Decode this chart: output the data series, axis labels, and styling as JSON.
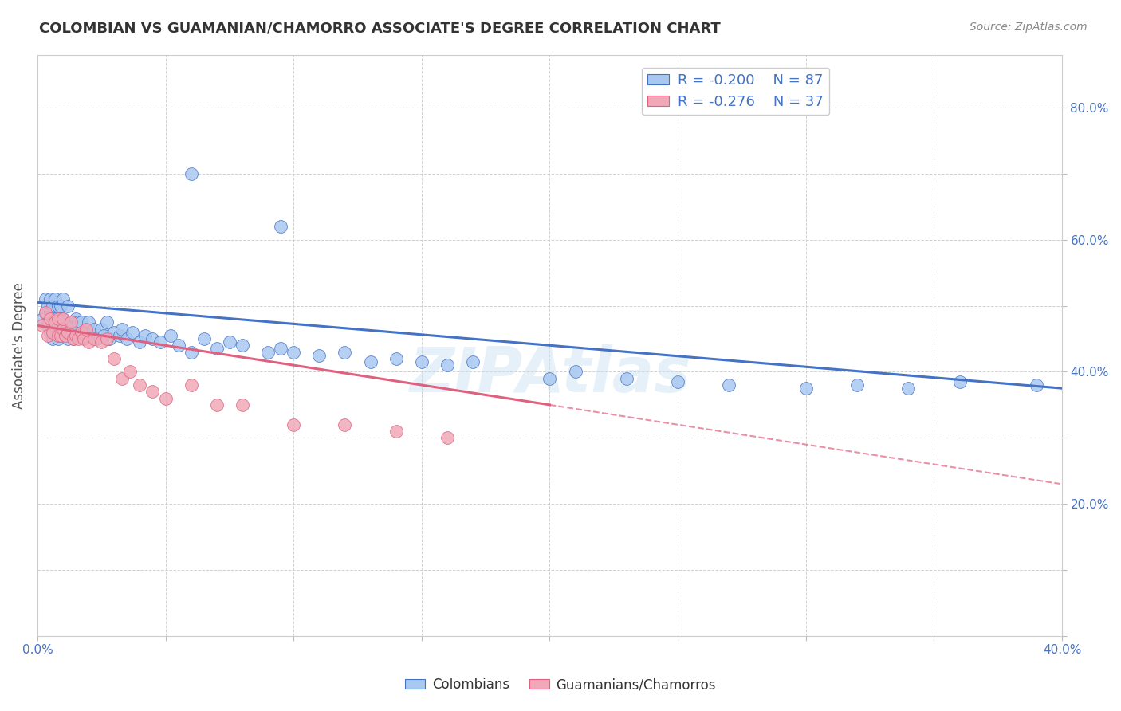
{
  "title": "COLOMBIAN VS GUAMANIAN/CHAMORRO ASSOCIATE'S DEGREE CORRELATION CHART",
  "source": "Source: ZipAtlas.com",
  "ylabel": "Associate's Degree",
  "xlim": [
    0.0,
    0.4
  ],
  "ylim": [
    0.0,
    0.88
  ],
  "R_colombian": -0.2,
  "N_colombian": 87,
  "R_guamanian": -0.276,
  "N_guamanian": 37,
  "colombian_color": "#a8c8f0",
  "guamanian_color": "#f0a8b8",
  "trend_colombian_color": "#4472c4",
  "trend_guamanian_color": "#e06080",
  "legend_label_1": "Colombians",
  "legend_label_2": "Guamanians/Chamorros",
  "col_intercept": 0.505,
  "col_slope": -0.325,
  "gua_intercept": 0.47,
  "gua_slope": -0.6,
  "colombian_x": [
    0.002,
    0.003,
    0.003,
    0.004,
    0.004,
    0.005,
    0.005,
    0.005,
    0.006,
    0.006,
    0.006,
    0.007,
    0.007,
    0.007,
    0.008,
    0.008,
    0.008,
    0.009,
    0.009,
    0.009,
    0.01,
    0.01,
    0.01,
    0.011,
    0.011,
    0.012,
    0.012,
    0.012,
    0.013,
    0.013,
    0.014,
    0.014,
    0.015,
    0.015,
    0.016,
    0.016,
    0.017,
    0.017,
    0.018,
    0.019,
    0.02,
    0.02,
    0.021,
    0.022,
    0.023,
    0.025,
    0.026,
    0.027,
    0.028,
    0.03,
    0.032,
    0.033,
    0.035,
    0.037,
    0.04,
    0.042,
    0.045,
    0.048,
    0.052,
    0.055,
    0.06,
    0.065,
    0.07,
    0.075,
    0.08,
    0.09,
    0.095,
    0.1,
    0.11,
    0.12,
    0.13,
    0.14,
    0.15,
    0.16,
    0.17,
    0.2,
    0.21,
    0.23,
    0.25,
    0.27,
    0.3,
    0.32,
    0.34,
    0.36,
    0.39,
    0.095,
    0.06
  ],
  "colombian_y": [
    0.48,
    0.49,
    0.51,
    0.47,
    0.5,
    0.46,
    0.49,
    0.51,
    0.45,
    0.47,
    0.5,
    0.46,
    0.48,
    0.51,
    0.45,
    0.47,
    0.5,
    0.455,
    0.48,
    0.5,
    0.46,
    0.48,
    0.51,
    0.455,
    0.475,
    0.45,
    0.47,
    0.5,
    0.455,
    0.475,
    0.45,
    0.47,
    0.46,
    0.48,
    0.455,
    0.475,
    0.455,
    0.475,
    0.46,
    0.465,
    0.455,
    0.475,
    0.46,
    0.465,
    0.45,
    0.465,
    0.455,
    0.475,
    0.45,
    0.46,
    0.455,
    0.465,
    0.45,
    0.46,
    0.445,
    0.455,
    0.45,
    0.445,
    0.455,
    0.44,
    0.43,
    0.45,
    0.435,
    0.445,
    0.44,
    0.43,
    0.435,
    0.43,
    0.425,
    0.43,
    0.415,
    0.42,
    0.415,
    0.41,
    0.415,
    0.39,
    0.4,
    0.39,
    0.385,
    0.38,
    0.375,
    0.38,
    0.375,
    0.385,
    0.38,
    0.62,
    0.7
  ],
  "guamanian_x": [
    0.002,
    0.003,
    0.004,
    0.005,
    0.006,
    0.007,
    0.008,
    0.008,
    0.009,
    0.01,
    0.01,
    0.011,
    0.012,
    0.013,
    0.014,
    0.015,
    0.016,
    0.017,
    0.018,
    0.019,
    0.02,
    0.022,
    0.025,
    0.027,
    0.03,
    0.033,
    0.036,
    0.04,
    0.045,
    0.05,
    0.06,
    0.07,
    0.08,
    0.1,
    0.12,
    0.14,
    0.16
  ],
  "guamanian_y": [
    0.47,
    0.49,
    0.455,
    0.48,
    0.46,
    0.475,
    0.455,
    0.48,
    0.455,
    0.465,
    0.48,
    0.455,
    0.46,
    0.475,
    0.45,
    0.455,
    0.45,
    0.46,
    0.45,
    0.465,
    0.445,
    0.45,
    0.445,
    0.45,
    0.42,
    0.39,
    0.4,
    0.38,
    0.37,
    0.36,
    0.38,
    0.35,
    0.35,
    0.32,
    0.32,
    0.31,
    0.3
  ]
}
